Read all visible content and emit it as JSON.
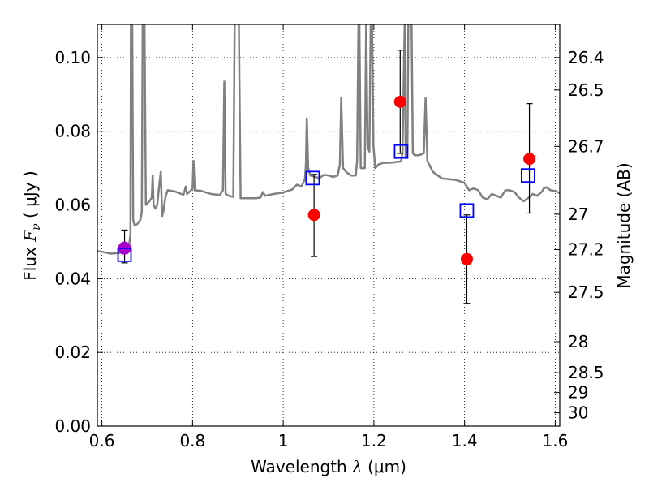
{
  "chart_data": {
    "type": "scatter",
    "title": "",
    "xlabel": "Wavelength  λ (μm)",
    "ylabel": "Flux  Fν  ( μJy )",
    "ylabel_parts": {
      "prefix": "Flux  ",
      "symbol": "F",
      "sub": "ν",
      "suffix": "  ( μJy )"
    },
    "xlabel_parts": {
      "prefix": "Wavelength  ",
      "symbol": "λ",
      "suffix": " (μm)"
    },
    "ylabel_right": "Magnitude (AB)",
    "xlim": [
      0.59,
      1.61
    ],
    "ylim": [
      0.0,
      0.109
    ],
    "grid": true,
    "x_ticks": [
      0.6,
      0.8,
      1.0,
      1.2,
      1.4,
      1.6
    ],
    "x_tick_labels": [
      "0.6",
      "0.8",
      "1",
      "1.2",
      "1.4",
      "1.6"
    ],
    "y_ticks": [
      0.0,
      0.02,
      0.04,
      0.06,
      0.08,
      0.1
    ],
    "y_tick_labels": [
      "0.00",
      "0.02",
      "0.04",
      "0.06",
      "0.08",
      "0.10"
    ],
    "mag_ticks": [
      {
        "label": "26.4",
        "flux": 0.1
      },
      {
        "label": "26.5",
        "flux": 0.0912
      },
      {
        "label": "26.7",
        "flux": 0.0759
      },
      {
        "label": "27",
        "flux": 0.0575
      },
      {
        "label": "27.2",
        "flux": 0.0479
      },
      {
        "label": "27.5",
        "flux": 0.0363
      },
      {
        "label": "28",
        "flux": 0.0229
      },
      {
        "label": "28.5",
        "flux": 0.0145
      },
      {
        "label": "29",
        "flux": 0.0091
      },
      {
        "label": "30",
        "flux": 0.0036
      }
    ],
    "model_spectrum": {
      "color": "#808080",
      "points": [
        [
          0.59,
          0.0475
        ],
        [
          0.6,
          0.0473
        ],
        [
          0.62,
          0.0468
        ],
        [
          0.64,
          0.047
        ],
        [
          0.65,
          0.0472
        ],
        [
          0.655,
          0.0478
        ],
        [
          0.66,
          0.049
        ],
        [
          0.663,
          0.052
        ],
        [
          0.664,
          0.11
        ],
        [
          0.667,
          0.11
        ],
        [
          0.669,
          0.056
        ],
        [
          0.672,
          0.0545
        ],
        [
          0.678,
          0.0548
        ],
        [
          0.685,
          0.056
        ],
        [
          0.688,
          0.058
        ],
        [
          0.69,
          0.11
        ],
        [
          0.694,
          0.11
        ],
        [
          0.697,
          0.06
        ],
        [
          0.705,
          0.061
        ],
        [
          0.71,
          0.062
        ],
        [
          0.712,
          0.068
        ],
        [
          0.714,
          0.06
        ],
        [
          0.718,
          0.059
        ],
        [
          0.722,
          0.06
        ],
        [
          0.727,
          0.066
        ],
        [
          0.73,
          0.069
        ],
        [
          0.733,
          0.057
        ],
        [
          0.736,
          0.0585
        ],
        [
          0.74,
          0.062
        ],
        [
          0.745,
          0.064
        ],
        [
          0.76,
          0.0637
        ],
        [
          0.775,
          0.063
        ],
        [
          0.78,
          0.0628
        ],
        [
          0.785,
          0.065
        ],
        [
          0.788,
          0.063
        ],
        [
          0.795,
          0.0638
        ],
        [
          0.8,
          0.0645
        ],
        [
          0.802,
          0.072
        ],
        [
          0.805,
          0.064
        ],
        [
          0.82,
          0.0638
        ],
        [
          0.84,
          0.063
        ],
        [
          0.86,
          0.0627
        ],
        [
          0.867,
          0.064
        ],
        [
          0.87,
          0.0935
        ],
        [
          0.873,
          0.063
        ],
        [
          0.88,
          0.0625
        ],
        [
          0.89,
          0.0622
        ],
        [
          0.893,
          0.11
        ],
        [
          0.902,
          0.11
        ],
        [
          0.906,
          0.0618
        ],
        [
          0.92,
          0.0618
        ],
        [
          0.94,
          0.0618
        ],
        [
          0.95,
          0.062
        ],
        [
          0.955,
          0.0635
        ],
        [
          0.96,
          0.0625
        ],
        [
          0.98,
          0.063
        ],
        [
          1.0,
          0.0634
        ],
        [
          1.02,
          0.0642
        ],
        [
          1.03,
          0.0655
        ],
        [
          1.04,
          0.065
        ],
        [
          1.048,
          0.067
        ],
        [
          1.05,
          0.071
        ],
        [
          1.052,
          0.0835
        ],
        [
          1.055,
          0.07
        ],
        [
          1.06,
          0.068
        ],
        [
          1.08,
          0.0673
        ],
        [
          1.09,
          0.0682
        ],
        [
          1.1,
          0.068
        ],
        [
          1.11,
          0.0676
        ],
        [
          1.12,
          0.068
        ],
        [
          1.125,
          0.071
        ],
        [
          1.128,
          0.089
        ],
        [
          1.132,
          0.07
        ],
        [
          1.14,
          0.0688
        ],
        [
          1.15,
          0.068
        ],
        [
          1.16,
          0.068
        ],
        [
          1.163,
          0.072
        ],
        [
          1.166,
          0.11
        ],
        [
          1.168,
          0.11
        ],
        [
          1.171,
          0.07
        ],
        [
          1.18,
          0.07
        ],
        [
          1.183,
          0.11
        ],
        [
          1.186,
          0.076
        ],
        [
          1.19,
          0.0745
        ],
        [
          1.193,
          0.11
        ],
        [
          1.196,
          0.11
        ],
        [
          1.199,
          0.076
        ],
        [
          1.203,
          0.07
        ],
        [
          1.21,
          0.071
        ],
        [
          1.22,
          0.0714
        ],
        [
          1.24,
          0.0715
        ],
        [
          1.26,
          0.0718
        ],
        [
          1.263,
          0.0745
        ],
        [
          1.268,
          0.11
        ],
        [
          1.27,
          0.073
        ],
        [
          1.274,
          0.075
        ],
        [
          1.276,
          0.11
        ],
        [
          1.283,
          0.11
        ],
        [
          1.286,
          0.074
        ],
        [
          1.29,
          0.0735
        ],
        [
          1.3,
          0.0735
        ],
        [
          1.31,
          0.074
        ],
        [
          1.314,
          0.089
        ],
        [
          1.318,
          0.072
        ],
        [
          1.33,
          0.069
        ],
        [
          1.35,
          0.0672
        ],
        [
          1.38,
          0.0668
        ],
        [
          1.4,
          0.066
        ],
        [
          1.41,
          0.064
        ],
        [
          1.42,
          0.0645
        ],
        [
          1.43,
          0.064
        ],
        [
          1.44,
          0.062
        ],
        [
          1.45,
          0.0615
        ],
        [
          1.46,
          0.063
        ],
        [
          1.47,
          0.0625
        ],
        [
          1.48,
          0.062
        ],
        [
          1.49,
          0.064
        ],
        [
          1.5,
          0.064
        ],
        [
          1.51,
          0.0635
        ],
        [
          1.52,
          0.062
        ],
        [
          1.53,
          0.061
        ],
        [
          1.54,
          0.0618
        ],
        [
          1.55,
          0.063
        ],
        [
          1.56,
          0.0625
        ],
        [
          1.57,
          0.0635
        ],
        [
          1.575,
          0.0645
        ],
        [
          1.58,
          0.0648
        ],
        [
          1.59,
          0.064
        ],
        [
          1.6,
          0.0638
        ],
        [
          1.61,
          0.0632
        ]
      ]
    },
    "model_photometry": {
      "color": "#0000ff",
      "points": [
        {
          "x": 0.65,
          "y": 0.0465
        },
        {
          "x": 1.065,
          "y": 0.0673
        },
        {
          "x": 1.26,
          "y": 0.0745
        },
        {
          "x": 1.405,
          "y": 0.0585
        },
        {
          "x": 1.54,
          "y": 0.068
        }
      ]
    },
    "observed": {
      "color": "#ff0000",
      "points": [
        {
          "x": 1.068,
          "y": 0.0573,
          "err_low": 0.046,
          "err_high": 0.0683
        },
        {
          "x": 1.258,
          "y": 0.088,
          "err_low": 0.074,
          "err_high": 0.102
        },
        {
          "x": 1.405,
          "y": 0.0453,
          "err_low": 0.0333,
          "err_high": 0.0573
        },
        {
          "x": 1.543,
          "y": 0.0725,
          "err_low": 0.0578,
          "err_high": 0.0875
        }
      ]
    },
    "observed_highlight": {
      "color": "#aa00cc",
      "points": [
        {
          "x": 0.65,
          "y": 0.0483,
          "err_low": 0.0443,
          "err_high": 0.0532
        }
      ]
    }
  }
}
